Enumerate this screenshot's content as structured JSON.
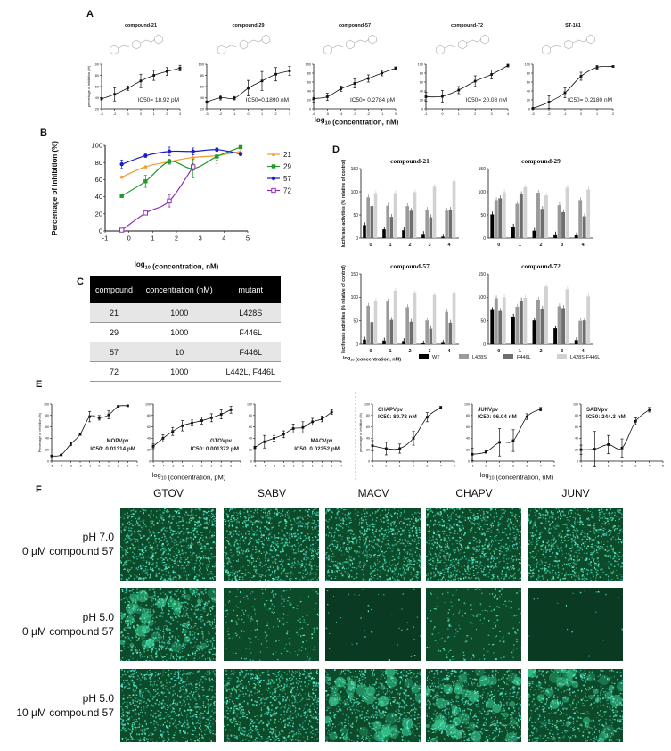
{
  "panel_labels": {
    "a": "A",
    "b": "B",
    "c": "C",
    "d": "D",
    "e": "E",
    "f": "F"
  },
  "chart_data": [
    {
      "id": "A1",
      "panel": "A",
      "type": "line",
      "title": "compound-21",
      "ylabel": "percentage of inhibition (%)",
      "ylim": [
        20,
        100
      ],
      "yticks": [
        20,
        40,
        60,
        80,
        100
      ],
      "xlim": [
        -3,
        3
      ],
      "x": [
        -3,
        -2,
        -1,
        0,
        1,
        2,
        3
      ],
      "y": [
        38,
        46,
        57,
        70,
        80,
        87,
        93
      ],
      "err": [
        2,
        12,
        4,
        12,
        9,
        7,
        5
      ],
      "annotation": "IC50= 18.92 pM",
      "color": "#111111"
    },
    {
      "id": "A2",
      "panel": "A",
      "type": "line",
      "title": "compound-29",
      "ylim": [
        20,
        100
      ],
      "yticks": [
        20,
        40,
        60,
        80,
        100
      ],
      "xlim": [
        -3,
        3
      ],
      "x": [
        -3,
        -2,
        -1,
        0,
        1,
        2,
        3
      ],
      "y": [
        32,
        40,
        39,
        57,
        70,
        82,
        88
      ],
      "err": [
        2,
        4,
        3,
        14,
        17,
        12,
        8
      ],
      "annotation": "IC50=0.1890 nM",
      "color": "#111111"
    },
    {
      "id": "A3",
      "panel": "A",
      "type": "line",
      "title": "compound-57",
      "ylim": [
        0,
        100
      ],
      "yticks": [
        0,
        20,
        40,
        60,
        80,
        100
      ],
      "xlim": [
        -6,
        0
      ],
      "x": [
        -6,
        -5,
        -4,
        -3,
        -2,
        -1,
        0
      ],
      "y": [
        23,
        27,
        45,
        57,
        68,
        80,
        91
      ],
      "err": [
        8,
        8,
        6,
        10,
        8,
        6,
        3
      ],
      "annotation": "IC50= 0.2784 pM",
      "color": "#111111"
    },
    {
      "id": "A4",
      "panel": "A",
      "type": "line",
      "title": "compound-72",
      "ylim": [
        0,
        100
      ],
      "yticks": [
        0,
        20,
        40,
        60,
        80,
        100
      ],
      "xlim": [
        -1,
        4
      ],
      "x": [
        -1,
        0,
        1,
        2,
        3,
        4
      ],
      "y": [
        27,
        28,
        42,
        62,
        77,
        97
      ],
      "err": [
        10,
        13,
        8,
        12,
        10,
        3
      ],
      "annotation": "IC50= 20.08 nM",
      "color": "#111111"
    },
    {
      "id": "A5",
      "panel": "A",
      "type": "line",
      "title": "ST-161",
      "ylim": [
        0,
        100
      ],
      "yticks": [
        0,
        20,
        40,
        60,
        80,
        100
      ],
      "xlim": [
        -3,
        2
      ],
      "x": [
        -3,
        -2,
        -1,
        0,
        1,
        2
      ],
      "y": [
        1,
        15,
        36,
        73,
        93,
        95
      ],
      "err": [
        1,
        14,
        11,
        9,
        4,
        1
      ],
      "annotation": "IC50= 0.2180 nM",
      "color": "#111111"
    },
    {
      "id": "B",
      "panel": "B",
      "type": "line",
      "ylabel": "Percentage of inhibition (%)",
      "xlabel": "log10 (concentration, nM)",
      "ylim": [
        0,
        100
      ],
      "yticks": [
        0,
        20,
        40,
        60,
        80,
        100
      ],
      "xlim": [
        -1,
        5
      ],
      "xticks": [
        -1,
        0,
        1,
        2,
        3,
        4,
        5
      ],
      "legend": "right",
      "series": [
        {
          "name": "21",
          "color": "#f39a2e",
          "marker": "triangle",
          "x": [
            -0.3,
            0.7,
            1.7,
            2.7,
            3.7,
            4.7
          ],
          "y": [
            63,
            75,
            81,
            86,
            88,
            93
          ],
          "err": [
            1,
            1,
            3,
            3,
            9,
            4
          ]
        },
        {
          "name": "29",
          "color": "#1e9a2a",
          "marker": "square",
          "x": [
            -0.3,
            0.7,
            1.7,
            2.7,
            3.7,
            4.7
          ],
          "y": [
            41,
            58,
            81,
            73,
            87,
            98
          ],
          "err": [
            2,
            7,
            3,
            11,
            4,
            1
          ]
        },
        {
          "name": "57",
          "color": "#1c1cc8",
          "marker": "circle",
          "x": [
            -0.3,
            0.7,
            1.7,
            2.7,
            3.7,
            4.7
          ],
          "y": [
            78,
            88,
            93,
            93,
            95,
            90
          ],
          "err": [
            5,
            2,
            5,
            4,
            2,
            2
          ]
        },
        {
          "name": "72",
          "color": "#8b2fb0",
          "marker": "open-square",
          "x": [
            -0.3,
            0.7,
            1.7,
            2.7
          ],
          "y": [
            1,
            21,
            35,
            75
          ],
          "err": [
            1,
            2,
            7,
            4
          ]
        }
      ]
    },
    {
      "id": "D",
      "panel": "D",
      "type": "bar",
      "ylabel": "luciferase activities (% relative of control)",
      "xlabel": "log10 (concentration, nM)",
      "ylim": [
        0,
        150
      ],
      "yticks": [
        0,
        50,
        100,
        150
      ],
      "categories": [
        "0",
        "1",
        "2",
        "3",
        "4"
      ],
      "series_names": [
        "WT",
        "L428S",
        "F446L",
        "L428S-F446L"
      ],
      "series_colors": [
        "#000000",
        "#9a9a9a",
        "#6e6e6e",
        "#d2d2d2"
      ],
      "subplots": [
        {
          "title": "compound-21",
          "values": [
            [
              28,
              19,
              17,
              9,
              3
            ],
            [
              88,
              70,
              69,
              61,
              59
            ],
            [
              69,
              46,
              59,
              45,
              61
            ],
            [
              97,
              97,
              99,
              111,
              123
            ]
          ]
        },
        {
          "title": "compound-29",
          "values": [
            [
              51,
              25,
              16,
              8,
              6
            ],
            [
              82,
              74,
              98,
              71,
              82
            ],
            [
              86,
              95,
              63,
              56,
              47
            ],
            [
              99,
              110,
              92,
              109,
              105
            ]
          ]
        },
        {
          "title": "compound-57",
          "values": [
            [
              10,
              8,
              7,
              2,
              3
            ],
            [
              82,
              91,
              79,
              51,
              69
            ],
            [
              47,
              52,
              48,
              33,
              46
            ],
            [
              92,
              114,
              109,
              105,
              109
            ]
          ]
        },
        {
          "title": "compound-72",
          "values": [
            [
              73,
              59,
              51,
              34,
              9
            ],
            [
              98,
              80,
              95,
              81,
              50
            ],
            [
              71,
              93,
              76,
              77,
              51
            ],
            [
              100,
              99,
              123,
              117,
              102
            ]
          ]
        }
      ]
    },
    {
      "id": "E1",
      "panel": "E",
      "type": "line",
      "ylabel": "Percentage of inhibition (%)",
      "ylim": [
        0,
        100
      ],
      "yticks": [
        0,
        20,
        40,
        60,
        80,
        100
      ],
      "xlim": [
        -5,
        4
      ],
      "x": [
        -5,
        -4,
        -3,
        -2,
        -1,
        0,
        1,
        2,
        3
      ],
      "y": [
        9,
        11,
        30,
        47,
        78,
        76,
        81,
        96,
        97
      ],
      "err": [
        1,
        1,
        3,
        2,
        9,
        4,
        7,
        1,
        1
      ],
      "annotation_name": "MOPVpv",
      "annotation": "IC50: 0.01314 pM"
    },
    {
      "id": "E2",
      "panel": "E",
      "type": "line",
      "ylim": [
        0,
        100
      ],
      "yticks": [
        0,
        20,
        40,
        60,
        80,
        100
      ],
      "xlim": [
        -5,
        4
      ],
      "x": [
        -5,
        -4,
        -3,
        -2,
        -1,
        0,
        1,
        2,
        3
      ],
      "y": [
        26,
        40,
        52,
        62,
        67,
        71,
        76,
        82,
        90
      ],
      "err": [
        4,
        6,
        7,
        9,
        5,
        6,
        7,
        8,
        6
      ],
      "annotation_name": "GTOVpv",
      "annotation": "IC50: 0.001372 pM"
    },
    {
      "id": "E3",
      "panel": "E",
      "type": "line",
      "ylim": [
        0,
        100
      ],
      "yticks": [
        0,
        20,
        40,
        60,
        80,
        100
      ],
      "xlim": [
        -5,
        4
      ],
      "x": [
        -5,
        -4,
        -3,
        -2,
        -1,
        0,
        1,
        2,
        3
      ],
      "y": [
        24,
        34,
        40,
        47,
        57,
        59,
        69,
        74,
        86
      ],
      "err": [
        2,
        11,
        5,
        6,
        8,
        10,
        6,
        5,
        4
      ],
      "annotation_name": "MACVpv",
      "annotation": "IC50: 0.02252 pM"
    },
    {
      "id": "E4",
      "panel": "E",
      "type": "line",
      "ylabel": "percentage of inhibition (%)",
      "ylim": [
        0,
        100
      ],
      "yticks": [
        0,
        20,
        40,
        60,
        80,
        100
      ],
      "xlim": [
        -1,
        5
      ],
      "x": [
        -1,
        0,
        1,
        2,
        3,
        4
      ],
      "y": [
        27,
        22,
        22,
        40,
        77,
        94
      ],
      "err": [
        9,
        11,
        8,
        12,
        8,
        2
      ],
      "annotation_name": "CHAPVpv",
      "annotation": "IC50: 89.78 nM"
    },
    {
      "id": "E5",
      "panel": "E",
      "type": "line",
      "ylim": [
        0,
        100
      ],
      "yticks": [
        0,
        20,
        40,
        60,
        80,
        100
      ],
      "xlim": [
        -1,
        5
      ],
      "x": [
        -1,
        0,
        1,
        2,
        3,
        4
      ],
      "y": [
        12,
        16,
        33,
        36,
        78,
        91
      ],
      "err": [
        11,
        2,
        24,
        19,
        5,
        3
      ],
      "annotation_name": "JUNVpv",
      "annotation": "IC50: 96.04 nM"
    },
    {
      "id": "E6",
      "panel": "E",
      "type": "line",
      "ylim": [
        0,
        100
      ],
      "yticks": [
        0,
        20,
        40,
        60,
        80,
        100
      ],
      "xlim": [
        -1,
        5
      ],
      "x": [
        -1,
        0,
        1,
        2,
        3,
        4
      ],
      "y": [
        20,
        21,
        29,
        23,
        70,
        90
      ],
      "err": [
        8,
        31,
        16,
        16,
        6,
        4
      ],
      "annotation_name": "SABVpv",
      "annotation": "IC50: 244.3 nM"
    }
  ],
  "panel_a": {
    "xlabel": "log10 (concentration, nM)"
  },
  "panel_e": {
    "xlabel_left": "log10 (concentration, pM)",
    "xlabel_right": "log10 (concentration, nM)"
  },
  "table_c": {
    "headers": [
      "compound",
      "concentration (nM)",
      "mutant"
    ],
    "rows": [
      [
        "21",
        "1000",
        "L428S"
      ],
      [
        "29",
        "1000",
        "F446L"
      ],
      [
        "57",
        "10",
        "F446L"
      ],
      [
        "72",
        "1000",
        "L442L, F446L"
      ]
    ]
  },
  "panel_f": {
    "columns": [
      "GTOV",
      "SABV",
      "MACV",
      "CHAPV",
      "JUNV"
    ],
    "rows": [
      {
        "line1": "pH 7.0",
        "line2": "0 µM compound 57"
      },
      {
        "line1": "pH 5.0",
        "line2": "0 µM compound 57"
      },
      {
        "line1": "pH 5.0",
        "line2": "10 µM compound 57"
      }
    ],
    "fluorescence_color": "#3cf0b4"
  }
}
